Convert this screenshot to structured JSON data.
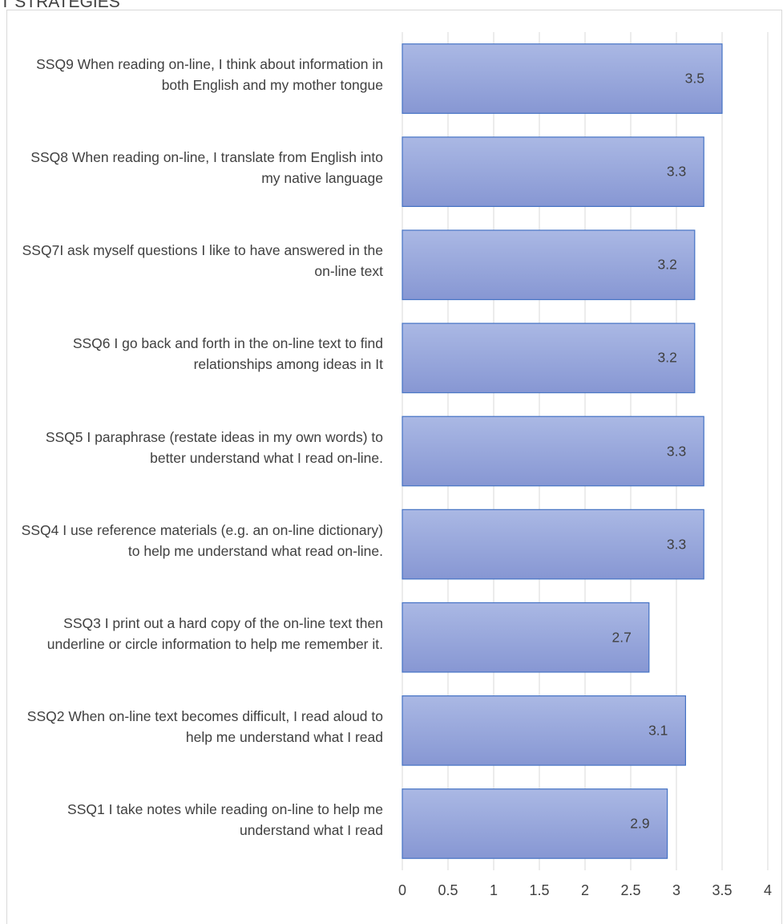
{
  "page": {
    "title": "T STRATEGIES"
  },
  "chart_data": {
    "type": "bar",
    "orientation": "horizontal",
    "title": "",
    "xlabel": "",
    "ylabel": "",
    "xlim": [
      0,
      4
    ],
    "ticks": [
      "0",
      "0.5",
      "1",
      "1.5",
      "2",
      "2.5",
      "3",
      "3.5",
      "4"
    ],
    "tick_values": [
      0,
      0.5,
      1,
      1.5,
      2,
      2.5,
      3,
      3.5,
      4
    ],
    "grid": true,
    "legend": false,
    "bar_color": "#8ea0d8",
    "bar_border_color": "#4472c4",
    "categories": [
      "SSQ9 When reading on-line, I think about information in both English and my mother tongue",
      "SSQ8  When reading on-line, I translate from English into my native language",
      "SSQ7I ask myself questions I like to have answered in the on-line text",
      "SSQ6 I go back and forth in the on-line text to find relationships among ideas in It",
      "SSQ5 I  paraphrase (restate ideas in my own words) to better understand what I read on-line.",
      "SSQ4 I  use reference materials (e.g. an on-line dictionary) to help me understand what read on-line.",
      "SSQ3 I  print out a hard copy of the on-line text then underline or circle information to help me remember it.",
      "SSQ2 When on-line text becomes difficult, I read aloud to help me understand what I read",
      "SSQ1 I take notes while reading on-line to help me understand what I read"
    ],
    "values": [
      3.5,
      3.3,
      3.2,
      3.2,
      3.3,
      3.3,
      2.7,
      3.1,
      2.9
    ],
    "value_labels": [
      "3.5",
      "3.3",
      "3.2",
      "3.2",
      "3.3",
      "3.3",
      "2.7",
      "3.1",
      "2.9"
    ]
  }
}
